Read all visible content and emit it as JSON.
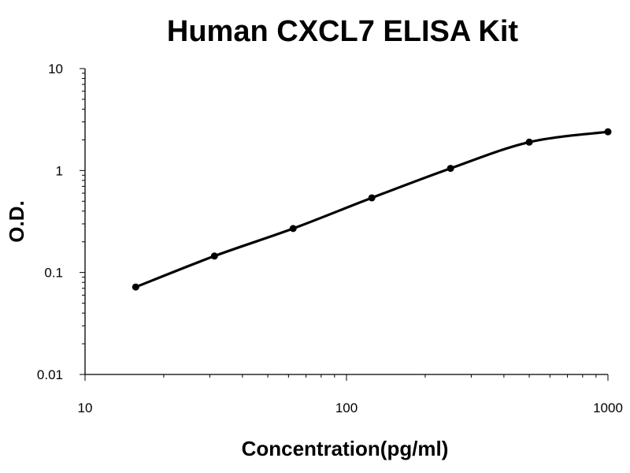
{
  "chart_data": {
    "type": "scatter",
    "title": "Human CXCL7 ELISA Kit",
    "xlabel": "Concentration(pg/ml)",
    "ylabel": "O.D.",
    "x_scale": "log",
    "y_scale": "log",
    "xlim": [
      10,
      1000
    ],
    "ylim": [
      0.01,
      10
    ],
    "x_ticks": [
      10,
      100,
      1000
    ],
    "x_tick_labels": [
      "10",
      "100",
      "1000"
    ],
    "y_ticks": [
      0.01,
      0.1,
      1,
      10
    ],
    "y_tick_labels": [
      "0.01",
      "0.1",
      "1",
      "10"
    ],
    "grid": false,
    "series": [
      {
        "x": [
          15.625,
          31.25,
          62.5,
          125,
          250,
          500,
          1000
        ],
        "y": [
          0.072,
          0.145,
          0.27,
          0.54,
          1.05,
          1.9,
          2.4
        ]
      }
    ],
    "fit_curve": true
  }
}
